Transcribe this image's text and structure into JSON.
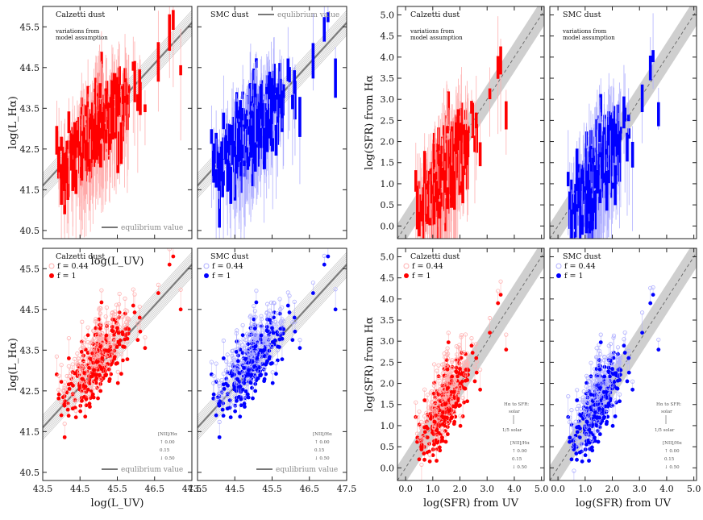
{
  "chart_data": [
    {
      "type": "scatter",
      "title": "Calzetti dust",
      "note_lines": [
        "variations from",
        "model assumption"
      ],
      "equilibrium_label": "equlibrium value",
      "xlabel": "log(L_UV)",
      "ylabel": "log(L_Hα)",
      "xlim": [
        43.5,
        47.5
      ],
      "ylim": [
        40.3,
        46.0
      ],
      "color": "#ff0000",
      "style": "errorbars"
    },
    {
      "type": "scatter",
      "title": "SMC dust",
      "equilibrium_label": "equlibrium value",
      "xlim": [
        43.5,
        47.5
      ],
      "ylim": [
        40.3,
        46.0
      ],
      "color": "#0000ff",
      "style": "errorbars"
    },
    {
      "type": "scatter",
      "title": "Calzetti dust",
      "legend": [
        "f = 0.44",
        "f = 1"
      ],
      "equilibrium_label": "equlibrium value",
      "xlabel": "log(L_UV)",
      "ylabel": "log(L_Hα)",
      "xlim": [
        43.5,
        47.5
      ],
      "ylim": [
        40.3,
        46.0
      ],
      "color": "#ff0000",
      "nii_label": "[NII]/Hα",
      "nii_values": [
        "0.00",
        "0.15",
        "0.50"
      ],
      "style": "points"
    },
    {
      "type": "scatter",
      "title": "SMC dust",
      "legend": [
        "f = 0.44",
        "f = 1"
      ],
      "equilibrium_label": "equlibrium value",
      "xlim": [
        43.5,
        47.5
      ],
      "ylim": [
        40.3,
        46.0
      ],
      "color": "#0000ff",
      "nii_label": "[NII]/Hα",
      "nii_values": [
        "0.00",
        "0.15",
        "0.50"
      ],
      "style": "points"
    },
    {
      "type": "scatter",
      "title": "Calzetti dust",
      "note_lines": [
        "variations from",
        "model assumption"
      ],
      "ylabel": "log(SFR) from Hα",
      "xlim": [
        -0.3,
        5.1
      ],
      "ylim": [
        -0.3,
        5.2
      ],
      "color": "#ff0000",
      "style": "errorbars"
    },
    {
      "type": "scatter",
      "title": "SMC dust",
      "note_lines": [
        "variations from",
        "model assumption"
      ],
      "xlim": [
        -0.3,
        5.1
      ],
      "ylim": [
        -0.3,
        5.2
      ],
      "color": "#0000ff",
      "style": "errorbars"
    },
    {
      "type": "scatter",
      "title": "Calzetti dust",
      "legend": [
        "f = 0.44",
        "f = 1"
      ],
      "xlabel": "log(SFR) from UV",
      "ylabel": "log(SFR) from Hα",
      "xlim": [
        -0.3,
        5.1
      ],
      "ylim": [
        -0.3,
        5.2
      ],
      "color": "#ff0000",
      "metal_label": "Hα to SFR:",
      "metal_values": [
        "solar",
        "1/5 solar"
      ],
      "nii_label": "[NII]/Hα",
      "nii_values": [
        "0.00",
        "0.15",
        "0.50"
      ],
      "style": "points"
    },
    {
      "type": "scatter",
      "title": "SMC dust",
      "legend": [
        "f = 0.44",
        "f = 1"
      ],
      "xlabel": "log(SFR) from UV",
      "xlim": [
        -0.3,
        5.1
      ],
      "ylim": [
        -0.3,
        5.2
      ],
      "color": "#0000ff",
      "metal_label": "Hα to SFR:",
      "metal_values": [
        "solar",
        "1/5 solar"
      ],
      "nii_label": "[NII]/Hα",
      "nii_values": [
        "0.00",
        "0.15",
        "0.50"
      ],
      "style": "points"
    }
  ],
  "axes": {
    "lum_x_ticks": [
      "43.5",
      "44.5",
      "45.5",
      "46.5",
      "47.5"
    ],
    "lum_y_ticks": [
      "40.5",
      "41.5",
      "42.5",
      "43.5",
      "44.5",
      "45.5"
    ],
    "sfr_x_ticks": [
      "0.0",
      "1.0",
      "2.0",
      "3.0",
      "4.0",
      "5.0"
    ],
    "sfr_y_ticks": [
      "0.0",
      "0.5",
      "1.0",
      "1.5",
      "2.0",
      "2.5",
      "3.0",
      "3.5",
      "4.0",
      "4.5",
      "5.0"
    ]
  }
}
